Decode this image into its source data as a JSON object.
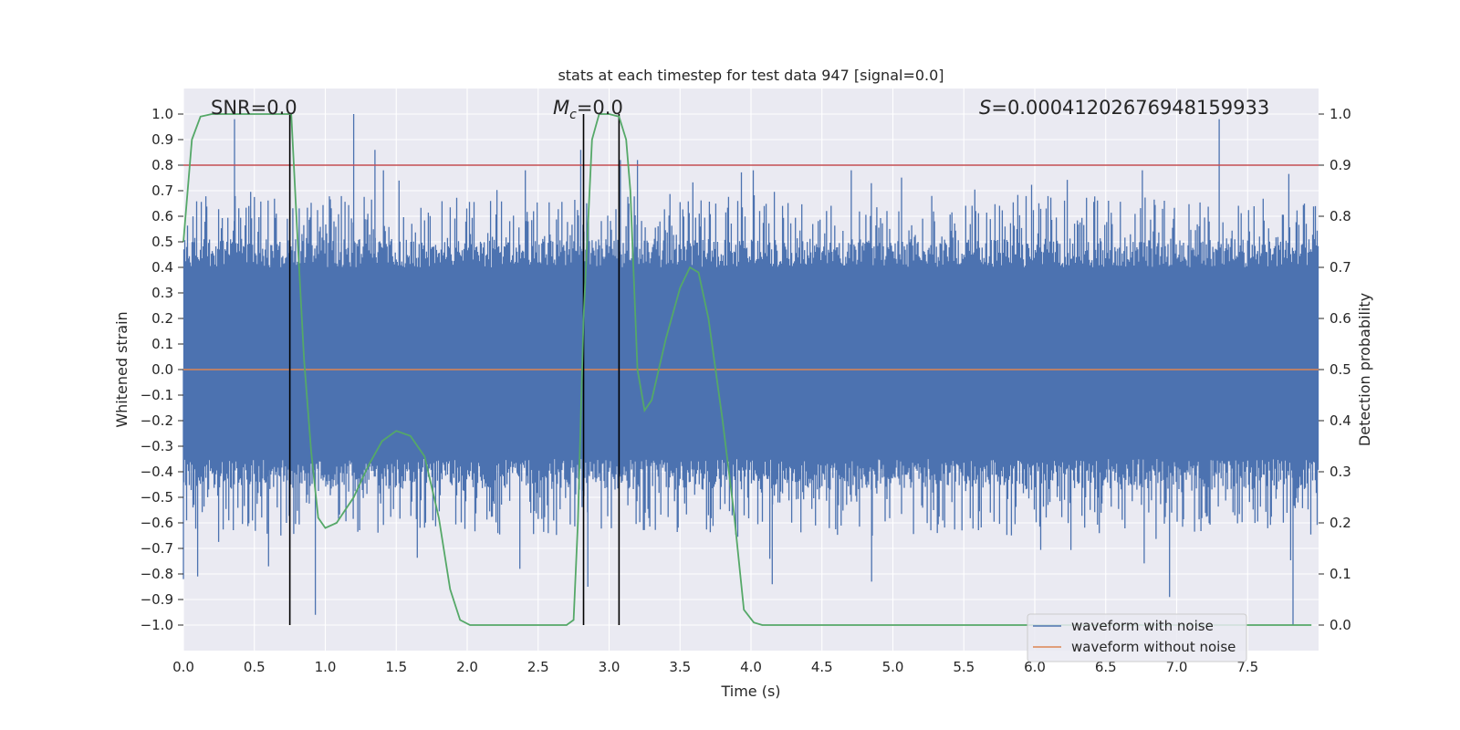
{
  "chart_data": {
    "type": "line",
    "title": "stats at each timestep for test data 947 [signal=0.0]",
    "xlabel": "Time (s)",
    "ylabel": "Whitened strain",
    "y2label": "Detection probability",
    "xlim": [
      0.0,
      8.0
    ],
    "ylim": [
      -1.1,
      1.1
    ],
    "y2lim": [
      -0.05,
      1.05
    ],
    "xticks": [
      0.0,
      0.5,
      1.0,
      1.5,
      2.0,
      2.5,
      3.0,
      3.5,
      4.0,
      4.5,
      5.0,
      5.5,
      6.0,
      6.5,
      7.0,
      7.5
    ],
    "xtick_labels": [
      "0.0",
      "0.5",
      "1.0",
      "1.5",
      "2.0",
      "2.5",
      "3.0",
      "3.5",
      "4.0",
      "4.5",
      "5.0",
      "5.5",
      "6.0",
      "6.5",
      "7.0",
      "7.5"
    ],
    "yticks": [
      1.0,
      0.9,
      0.8,
      0.7,
      0.6,
      0.5,
      0.4,
      0.3,
      0.2,
      0.1,
      0.0,
      -0.1,
      -0.2,
      -0.3,
      -0.4,
      -0.5,
      -0.6,
      -0.7,
      -0.8,
      -0.9,
      -1.0
    ],
    "ytick_labels": [
      "1.0",
      "0.9",
      "0.8",
      "0.7",
      "0.6",
      "0.5",
      "0.4",
      "0.3",
      "0.2",
      "0.1",
      "0.0",
      "−0.1",
      "−0.2",
      "−0.3",
      "−0.4",
      "−0.5",
      "−0.6",
      "−0.7",
      "−0.8",
      "−0.9",
      "−1.0"
    ],
    "y2ticks": [
      1.0,
      0.9,
      0.8,
      0.7,
      0.6,
      0.5,
      0.4,
      0.3,
      0.2,
      0.1,
      0.0
    ],
    "y2tick_labels": [
      "1.0",
      "0.9",
      "0.8",
      "0.7",
      "0.6",
      "0.5",
      "0.4",
      "0.3",
      "0.2",
      "0.1",
      "0.0"
    ],
    "grid": true,
    "legend_position": "bottom-right",
    "series": [
      {
        "name": "waveform with noise",
        "color": "#4c72b0",
        "envelope": {
          "typical_range": [
            -0.35,
            0.4
          ],
          "peaks": [
            {
              "x": 0.0,
              "y": -0.82
            },
            {
              "x": 0.1,
              "y": -0.81
            },
            {
              "x": 0.36,
              "y": 0.98
            },
            {
              "x": 0.6,
              "y": -0.77
            },
            {
              "x": 0.93,
              "y": -0.96
            },
            {
              "x": 1.2,
              "y": 1.0
            },
            {
              "x": 1.35,
              "y": 0.86
            },
            {
              "x": 2.8,
              "y": 0.86
            },
            {
              "x": 2.85,
              "y": -0.85
            },
            {
              "x": 3.08,
              "y": 0.82
            },
            {
              "x": 3.2,
              "y": 0.82
            },
            {
              "x": 4.15,
              "y": -0.84
            },
            {
              "x": 4.85,
              "y": -0.83
            },
            {
              "x": 6.95,
              "y": -0.89
            },
            {
              "x": 7.3,
              "y": 0.98
            },
            {
              "x": 7.82,
              "y": -1.0
            }
          ]
        }
      },
      {
        "name": "waveform without noise",
        "color": "#dd8452",
        "x": [
          0.0,
          8.0
        ],
        "y": [
          0.0,
          0.0
        ]
      },
      {
        "name": "detection probability",
        "axis": "right",
        "color": "#55a868",
        "x": [
          0.0,
          0.06,
          0.12,
          0.2,
          0.3,
          0.5,
          0.65,
          0.72,
          0.76,
          0.8,
          0.85,
          0.9,
          0.95,
          1.0,
          1.08,
          1.2,
          1.3,
          1.4,
          1.5,
          1.6,
          1.7,
          1.8,
          1.88,
          1.95,
          2.02,
          2.2,
          2.5,
          2.7,
          2.75,
          2.78,
          2.82,
          2.88,
          2.93,
          3.0,
          3.07,
          3.12,
          3.15,
          3.2,
          3.25,
          3.3,
          3.4,
          3.5,
          3.57,
          3.63,
          3.7,
          3.8,
          3.88,
          3.95,
          4.02,
          4.08,
          4.2,
          5.0,
          6.0,
          7.0,
          7.95
        ],
        "y": [
          0.75,
          0.95,
          0.995,
          1.0,
          1.0,
          1.0,
          1.0,
          1.0,
          1.0,
          0.78,
          0.52,
          0.34,
          0.21,
          0.19,
          0.2,
          0.25,
          0.31,
          0.36,
          0.38,
          0.37,
          0.33,
          0.21,
          0.07,
          0.01,
          0.0,
          0.0,
          0.0,
          0.0,
          0.01,
          0.2,
          0.6,
          0.95,
          1.0,
          1.0,
          0.995,
          0.95,
          0.85,
          0.5,
          0.42,
          0.44,
          0.56,
          0.66,
          0.7,
          0.69,
          0.6,
          0.4,
          0.22,
          0.03,
          0.005,
          0.0,
          0.0,
          0.0,
          0.0,
          0.0,
          0.0
        ]
      }
    ],
    "hlines": [
      {
        "y": 0.8,
        "color": "#c44e52"
      }
    ],
    "vlines": [
      {
        "x": 0.75,
        "ymin": -1.0,
        "ymax": 1.0,
        "color": "#000000"
      },
      {
        "x": 2.82,
        "ymin": -1.0,
        "ymax": 1.0,
        "color": "#000000"
      },
      {
        "x": 3.07,
        "ymin": -1.0,
        "ymax": 1.0,
        "color": "#000000"
      }
    ],
    "annotations": {
      "snr": "SNR=0.0",
      "mc_symbol": "M",
      "mc_subscript": "c",
      "mc_value": "=0.0",
      "s_symbol": "S",
      "s_value": "=0.00041202676948159933"
    },
    "legend": [
      {
        "label": "waveform with noise",
        "color": "#4c72b0"
      },
      {
        "label": "waveform without noise",
        "color": "#dd8452"
      }
    ]
  }
}
